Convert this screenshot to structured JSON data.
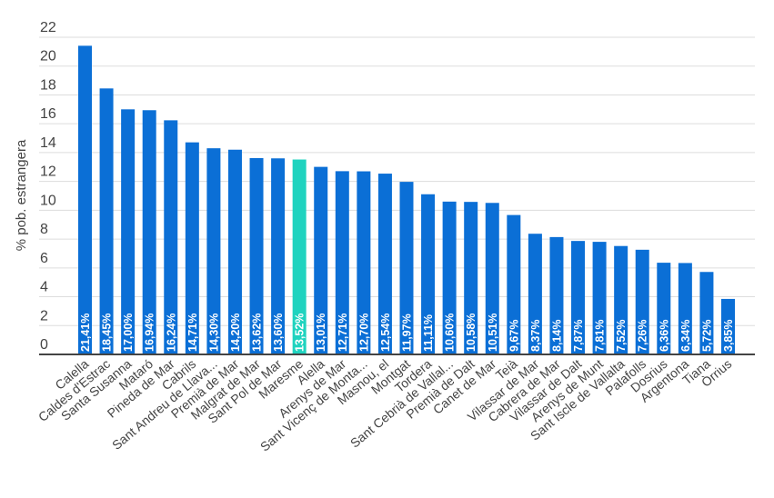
{
  "chart_data": {
    "type": "bar",
    "title": "",
    "xlabel": "",
    "ylabel": "% pob. estrangera",
    "ylim": [
      0,
      22
    ],
    "yticks": [
      0,
      2,
      4,
      6,
      8,
      10,
      12,
      14,
      16,
      18,
      20,
      22
    ],
    "grid": true,
    "legend": "none",
    "colors": {
      "default": "#0b6fd6",
      "highlight": "#1fd3bf",
      "grid": "#dddddd",
      "axis": "#444444"
    },
    "highlight_category": "Maresme",
    "categories": [
      "Calella",
      "Caldes d'Estrac",
      "Santa Susanna",
      "Mataró",
      "Pineda de Mar",
      "Cabrils",
      "Sant Andreu de Llava...",
      "Premià de Mar",
      "Malgrat de Mar",
      "Sant Pol de Mar",
      "Maresme",
      "Alella",
      "Arenys de Mar",
      "Sant Vicenç de Monta...",
      "Masnou, el",
      "Montgat",
      "Tordera",
      "Sant Cebrià de Vallal...",
      "Premià de Dalt",
      "Canet de Mar",
      "Teià",
      "Vilassar de Mar",
      "Cabrera de Mar",
      "Vilassar de Dalt",
      "Arenys de Munt",
      "Sant Iscle de Vallalta",
      "Palafolls",
      "Dosrius",
      "Argentona",
      "Tiana",
      "Òrrius"
    ],
    "values": [
      21.41,
      18.45,
      17.0,
      16.94,
      16.24,
      14.71,
      14.3,
      14.2,
      13.62,
      13.6,
      13.52,
      13.01,
      12.71,
      12.7,
      12.54,
      11.97,
      11.11,
      10.6,
      10.58,
      10.51,
      9.67,
      8.37,
      8.14,
      7.87,
      7.81,
      7.52,
      7.26,
      6.36,
      6.34,
      5.72,
      3.85
    ],
    "data_labels": [
      "21,41%",
      "18,45%",
      "17,00%",
      "16,94%",
      "16,24%",
      "14,71%",
      "14,30%",
      "14,20%",
      "13,62%",
      "13,60%",
      "13,52%",
      "13,01%",
      "12,71%",
      "12,70%",
      "12,54%",
      "11,97%",
      "11,11%",
      "10,60%",
      "10,58%",
      "10,51%",
      "9,67%",
      "8,37%",
      "8,14%",
      "7,87%",
      "7,81%",
      "7,52%",
      "7,26%",
      "6,36%",
      "6,34%",
      "5,72%",
      "3,85%"
    ]
  }
}
